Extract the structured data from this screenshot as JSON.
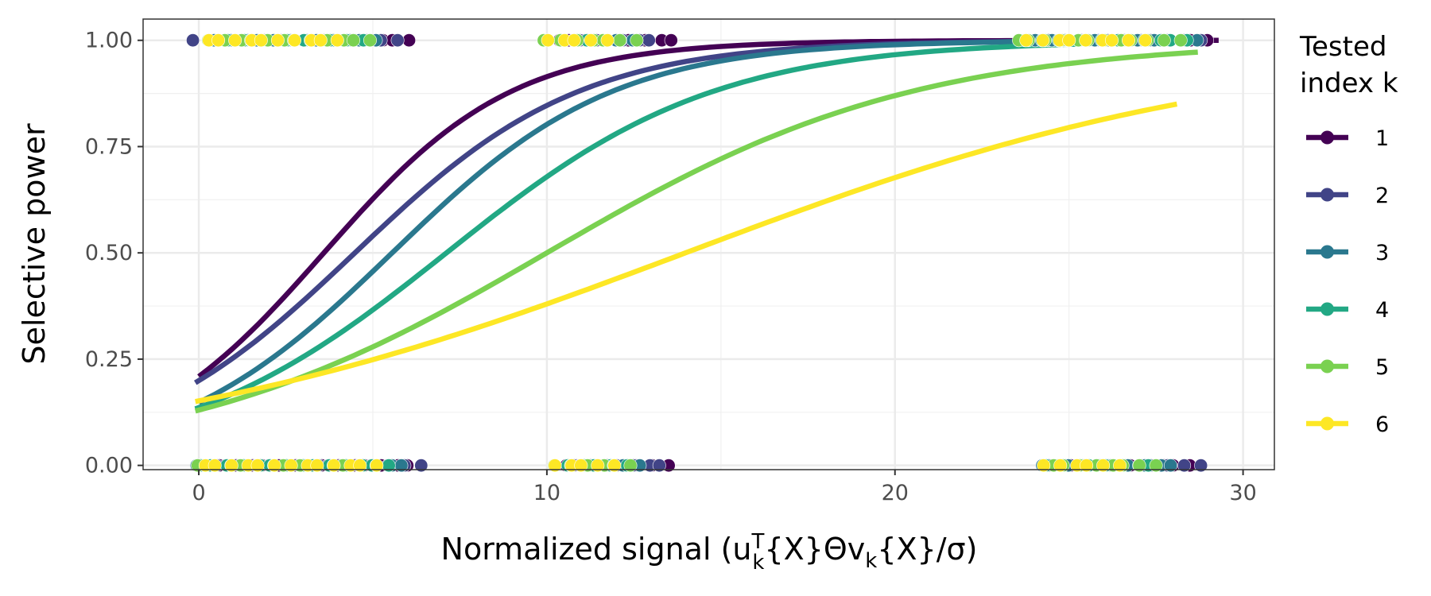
{
  "chart_data": {
    "type": "line",
    "xlabel": "Normalized signal (u_k^T{X}Θv_k{X}/σ)",
    "xlabel_parts": {
      "prefix": "Normalized signal (u",
      "sub1": "k",
      "sup1": "T",
      "middle": "{X}Θv",
      "sub2": "k",
      "suffix": "{X}/σ)"
    },
    "ylabel": "Selective power",
    "xlim": [
      -1.6,
      30.9
    ],
    "ylim": [
      -0.01,
      1.05
    ],
    "x_ticks": [
      0,
      10,
      20,
      30
    ],
    "x_tick_labels": [
      "0",
      "10",
      "20",
      "30"
    ],
    "y_ticks": [
      0,
      0.25,
      0.5,
      0.75,
      1.0
    ],
    "y_tick_labels": [
      "0.00",
      "0.25",
      "0.50",
      "0.75",
      "1.00"
    ],
    "grid": true,
    "legend_placement": "right",
    "legend_title_lines": [
      "Tested",
      "index k"
    ],
    "series": [
      {
        "name": "1",
        "color": "#440154",
        "intercept": -1.33,
        "slope": 0.37,
        "x_range": [
          0,
          29.3
        ],
        "points": {
          "one": [
            [
              1.0,
              6.3
            ],
            [
              10.3,
              13.8
            ],
            [
              24.8,
              29.3
            ]
          ],
          "zero": [
            [
              0.2,
              6.2
            ],
            [
              10.5,
              13.7
            ],
            [
              24.3,
              28.6
            ]
          ]
        }
      },
      {
        "name": "2",
        "color": "#414487",
        "intercept": -1.39,
        "slope": 0.31,
        "x_range": [
          -0.1,
          29.1
        ],
        "points": {
          "one": [
            [
              -0.2,
              5.8
            ],
            [
              10.5,
              13.3
            ],
            [
              24.5,
              29.0
            ]
          ],
          "zero": [
            [
              0,
              6.5
            ],
            [
              10.8,
              13.4
            ],
            [
              24.5,
              28.7
            ]
          ]
        }
      },
      {
        "name": "3",
        "color": "#2a788e",
        "intercept": -1.75,
        "slope": 0.315,
        "x_range": [
          0,
          28.8
        ],
        "points": {
          "one": [
            [
              0.5,
              5.5
            ],
            [
              10.4,
              12.8
            ],
            [
              24.0,
              28.8
            ]
          ],
          "zero": [
            [
              0,
              6.0
            ],
            [
              10.6,
              12.9
            ],
            [
              24.2,
              28.2
            ]
          ]
        }
      },
      {
        "name": "4",
        "color": "#22a884",
        "intercept": -1.85,
        "slope": 0.26,
        "x_range": [
          -0.1,
          28.5
        ],
        "points": {
          "one": [
            [
              0.5,
              4.9
            ],
            [
              10.4,
              12.3
            ],
            [
              23.8,
              28.5
            ]
          ],
          "zero": [
            [
              0,
              5.6
            ],
            [
              10.6,
              12.5
            ],
            [
              24.4,
              27.4
            ]
          ]
        }
      },
      {
        "name": "5",
        "color": "#7ad151",
        "intercept": -1.9,
        "slope": 0.19,
        "x_range": [
          -0.1,
          28.7
        ],
        "points": {
          "one": [
            [
              0.3,
              5.2
            ],
            [
              10.0,
              12.6
            ],
            [
              23.5,
              28.5
            ]
          ],
          "zero": [
            [
              0,
              5.4
            ],
            [
              10.3,
              12.6
            ],
            [
              24.5,
              27.5
            ]
          ]
        }
      },
      {
        "name": "6",
        "color": "#fde725",
        "intercept": -1.72,
        "slope": 0.123,
        "x_range": [
          -0.1,
          28.1
        ],
        "points": {
          "one": [
            [
              0.2,
              4.0
            ],
            [
              10.0,
              11.8
            ],
            [
              23.8,
              27.5
            ]
          ],
          "zero": [
            [
              0.1,
              5.3
            ],
            [
              10.2,
              12.0
            ],
            [
              24.3,
              26.8
            ]
          ]
        }
      }
    ]
  }
}
